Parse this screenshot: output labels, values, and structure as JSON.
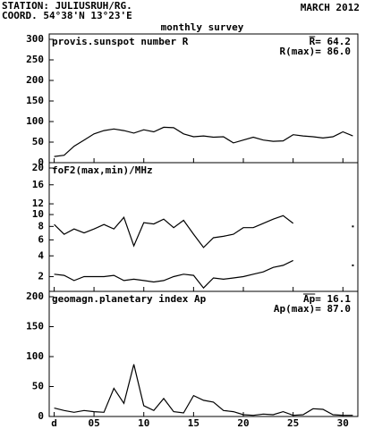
{
  "header": {
    "station": "STATION: JULIUSRUH/RG.",
    "coord": "COORD. 54°38'N 13°23'E",
    "date": "MARCH 2012",
    "subtitle": "monthly survey"
  },
  "chart_data": [
    {
      "type": "line",
      "title": "provis.sunspot number R",
      "annotations": [
        "R= 64.2",
        "R(max)= 86.0"
      ],
      "x": [
        1,
        2,
        3,
        4,
        5,
        6,
        7,
        8,
        9,
        10,
        11,
        12,
        13,
        14,
        15,
        16,
        17,
        18,
        19,
        20,
        21,
        22,
        23,
        24,
        25,
        26,
        27,
        28,
        29,
        30,
        31
      ],
      "series": [
        {
          "color": "#000000",
          "values": [
            15,
            18,
            40,
            55,
            70,
            78,
            82,
            78,
            72,
            80,
            75,
            86,
            85,
            70,
            63,
            65,
            62,
            63,
            48,
            55,
            62,
            55,
            52,
            53,
            68,
            65,
            63,
            60,
            63,
            75,
            65
          ]
        }
      ],
      "xlim": [
        0.5,
        31.5
      ],
      "ylim": [
        0,
        300
      ],
      "yticks": [
        0,
        50,
        100,
        150,
        200,
        250,
        300
      ]
    },
    {
      "type": "line",
      "title": "foF2(max,min)/MHz",
      "scale": "sqrt",
      "x": [
        1,
        2,
        3,
        4,
        5,
        6,
        7,
        8,
        9,
        10,
        11,
        12,
        13,
        14,
        15,
        16,
        17,
        18,
        19,
        20,
        21,
        22,
        23,
        24,
        25,
        26,
        27,
        28,
        29,
        30,
        31
      ],
      "series": [
        {
          "color": "#000000",
          "values": [
            8.3,
            6.8,
            7.6,
            7.0,
            7.6,
            8.3,
            7.6,
            9.5,
            5.2,
            8.6,
            8.4,
            9.2,
            7.8,
            9.0,
            6.8,
            5.0,
            6.3,
            6.5,
            6.8,
            7.8,
            7.8,
            8.5,
            9.2,
            9.8,
            8.5,
            null,
            null,
            null,
            null,
            null,
            8.0
          ]
        },
        {
          "color": "#000000",
          "values": [
            2.2,
            2.1,
            1.7,
            2.0,
            2.0,
            2.0,
            2.1,
            1.7,
            1.8,
            1.7,
            1.6,
            1.7,
            2.0,
            2.2,
            2.1,
            1.2,
            1.9,
            1.8,
            1.9,
            2.0,
            2.2,
            2.4,
            2.8,
            3.0,
            3.5,
            null,
            null,
            null,
            null,
            null,
            3.0
          ]
        }
      ],
      "xlim": [
        0.5,
        31.5
      ],
      "ylim": [
        1,
        20
      ],
      "yticks": [
        2,
        4,
        6,
        8,
        10,
        12,
        16,
        20
      ]
    },
    {
      "type": "line",
      "title": "geomagn.planetary index Ap",
      "annotations": [
        "Ap= 16.1",
        "Ap(max)= 87.0"
      ],
      "x": [
        1,
        2,
        3,
        4,
        5,
        6,
        7,
        8,
        9,
        10,
        11,
        12,
        13,
        14,
        15,
        16,
        17,
        18,
        19,
        20,
        21,
        22,
        23,
        24,
        25,
        26,
        27,
        28,
        29,
        30,
        31
      ],
      "series": [
        {
          "color": "#000000",
          "values": [
            14,
            10,
            7,
            10,
            8,
            7,
            47,
            22,
            87,
            18,
            10,
            30,
            8,
            6,
            35,
            27,
            24,
            10,
            8,
            3,
            2,
            4,
            3,
            8,
            2,
            3,
            13,
            12,
            3,
            2,
            2
          ]
        }
      ],
      "xlim": [
        0.5,
        31.5
      ],
      "ylim": [
        0,
        200
      ],
      "yticks": [
        0,
        50,
        100,
        150,
        200
      ],
      "xticks": [
        {
          "value": 1,
          "label": "d"
        },
        {
          "value": 5,
          "label": "05"
        },
        10,
        15,
        20,
        25,
        30
      ]
    }
  ]
}
